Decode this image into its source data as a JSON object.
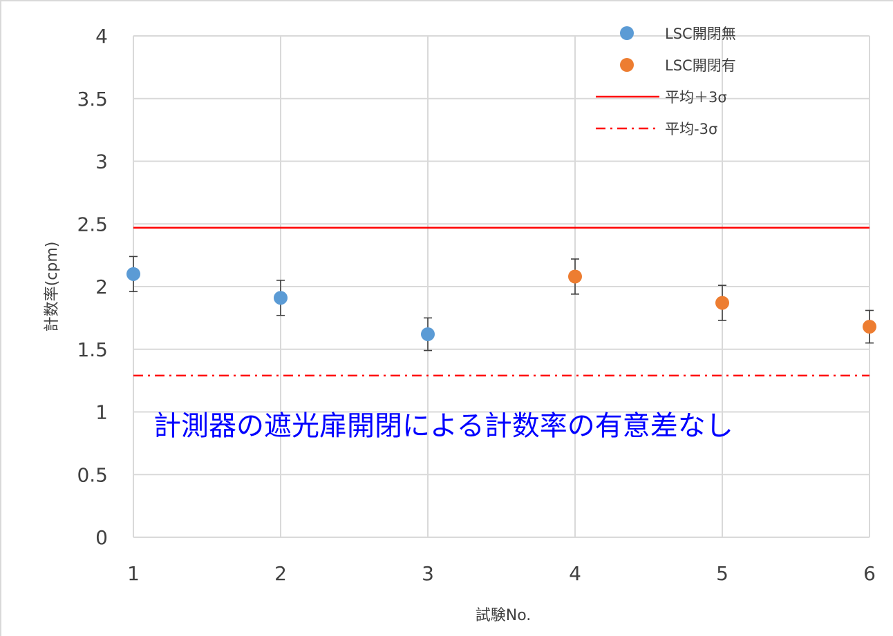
{
  "chart_data": {
    "type": "scatter",
    "title": "",
    "xlabel": "試験No.",
    "ylabel": "計数率(cpm)",
    "xlim": [
      1,
      6
    ],
    "ylim": [
      0,
      4
    ],
    "x_ticks": [
      "1",
      "2",
      "3",
      "4",
      "5",
      "6"
    ],
    "y_ticks": [
      "0",
      "0.5",
      "1",
      "1.5",
      "2",
      "2.5",
      "3",
      "3.5",
      "4"
    ],
    "grid": true,
    "legend_position": "top-right",
    "series": [
      {
        "name": "LSC開閉無",
        "kind": "points",
        "color": "#5b9bd5",
        "points": [
          {
            "x": 1,
            "y": 2.1,
            "err": 0.14
          },
          {
            "x": 2,
            "y": 1.91,
            "err": 0.14
          },
          {
            "x": 3,
            "y": 1.62,
            "err": 0.13
          }
        ]
      },
      {
        "name": "LSC開閉有",
        "kind": "points",
        "color": "#ed7d31",
        "points": [
          {
            "x": 4,
            "y": 2.08,
            "err": 0.14
          },
          {
            "x": 5,
            "y": 1.87,
            "err": 0.14
          },
          {
            "x": 6,
            "y": 1.68,
            "err": 0.13
          }
        ]
      },
      {
        "name": "平均＋3σ",
        "kind": "hline",
        "color": "#ff0000",
        "style": "solid",
        "y": 2.47
      },
      {
        "name": "平均-3σ",
        "kind": "hline",
        "color": "#ff0000",
        "style": "dashdot",
        "y": 1.29
      }
    ],
    "annotation": {
      "text": "計測器の遮光扉開閉による計数率の有意差なし",
      "color": "#0000ff"
    }
  }
}
